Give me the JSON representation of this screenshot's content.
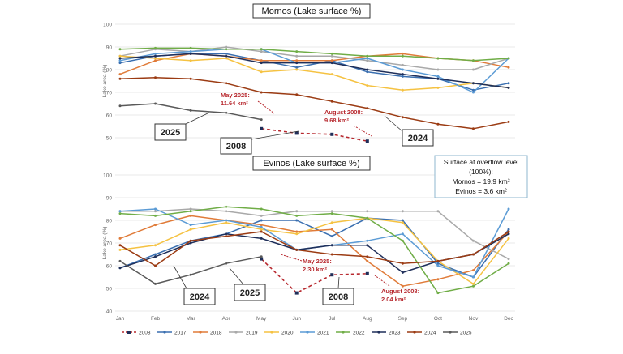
{
  "chart_data": [
    {
      "type": "line",
      "title": "Mornos (Lake surface %)",
      "ylabel": "Lake area (%)",
      "ylim": [
        50,
        100
      ],
      "yticks": [
        50,
        60,
        70,
        80,
        90,
        100
      ],
      "categories": [
        "Jan",
        "Feb",
        "Mar",
        "Apr",
        "May",
        "Jun",
        "Jul",
        "Aug",
        "Sep",
        "Oct",
        "Nov",
        "Dec"
      ],
      "series": [
        {
          "name": "2008",
          "color": "#b7282e",
          "dashed": true,
          "values": [
            null,
            null,
            null,
            null,
            54,
            52,
            51.5,
            48.5,
            null,
            null,
            null,
            null
          ]
        },
        {
          "name": "2017",
          "color": "#3a6fb0",
          "values": [
            83,
            86,
            87,
            87,
            84,
            81,
            84,
            79,
            77,
            76,
            71,
            74
          ]
        },
        {
          "name": "2018",
          "color": "#e07b39",
          "values": [
            78,
            84,
            87,
            86,
            84,
            84,
            84,
            86,
            87,
            85,
            84,
            81
          ]
        },
        {
          "name": "2019",
          "color": "#a9a9a9",
          "values": [
            86,
            89,
            88,
            90,
            88,
            86,
            86,
            84,
            82,
            80,
            80,
            85
          ]
        },
        {
          "name": "2020",
          "color": "#f5c242",
          "values": [
            86,
            85,
            84,
            85,
            79,
            80,
            78,
            73,
            71,
            72,
            74,
            72
          ]
        },
        {
          "name": "2021",
          "color": "#5b9bd5",
          "values": [
            84,
            87,
            88,
            89,
            89,
            83,
            83,
            85,
            80,
            77,
            70,
            85
          ]
        },
        {
          "name": "2022",
          "color": "#70ad47",
          "values": [
            89,
            89.5,
            89.5,
            89,
            89,
            88,
            87,
            86,
            86,
            85,
            84,
            85
          ]
        },
        {
          "name": "2023",
          "color": "#1f2f5a",
          "values": [
            85,
            86,
            87,
            86,
            83,
            83,
            83,
            80,
            78,
            76,
            74,
            72
          ]
        },
        {
          "name": "2024",
          "color": "#9b3b13",
          "values": [
            76,
            76.5,
            76,
            74,
            70,
            69,
            66,
            63,
            59,
            56,
            54,
            57
          ]
        },
        {
          "name": "2025",
          "color": "#595959",
          "values": [
            64,
            65,
            62,
            61,
            58,
            null,
            null,
            null,
            null,
            null,
            null,
            null
          ]
        }
      ],
      "annotations": {
        "may2025": [
          "May 2025:",
          "11.64 km²"
        ],
        "aug2008": [
          "August 2008:",
          "9.68 km²"
        ]
      },
      "labels": {
        "y2025": "2025",
        "y2008": "2008",
        "y2024": "2024"
      }
    },
    {
      "type": "line",
      "title": "Evinos (Lake surface %)",
      "ylabel": "Lake area (%)",
      "ylim": [
        40,
        100
      ],
      "yticks": [
        40,
        50,
        60,
        70,
        80,
        90,
        100
      ],
      "categories": [
        "Jan",
        "Feb",
        "Mar",
        "Apr",
        "May",
        "Jun",
        "Jul",
        "Aug",
        "Sep",
        "Oct",
        "Nov",
        "Dec"
      ],
      "series": [
        {
          "name": "2008",
          "color": "#b7282e",
          "dashed": true,
          "values": [
            null,
            null,
            null,
            null,
            63,
            48,
            56,
            56.5,
            null,
            null,
            null,
            null
          ]
        },
        {
          "name": "2017",
          "color": "#3a6fb0",
          "values": [
            59,
            65,
            71,
            74,
            80,
            80,
            73,
            81,
            80,
            61,
            55,
            76
          ]
        },
        {
          "name": "2018",
          "color": "#e07b39",
          "values": [
            72,
            78,
            82,
            80,
            78,
            75,
            76,
            62,
            51,
            54,
            58,
            75
          ]
        },
        {
          "name": "2019",
          "color": "#a9a9a9",
          "values": [
            84,
            84,
            85,
            84,
            82,
            84,
            84,
            84,
            84,
            84,
            71,
            63
          ]
        },
        {
          "name": "2020",
          "color": "#f5c242",
          "values": [
            67,
            69,
            76,
            79,
            76,
            74,
            79,
            81,
            79,
            62,
            52,
            72
          ]
        },
        {
          "name": "2021",
          "color": "#5b9bd5",
          "values": [
            84,
            85,
            78,
            80,
            77,
            67,
            69,
            71,
            74,
            60,
            55,
            85
          ]
        },
        {
          "name": "2022",
          "color": "#70ad47",
          "values": [
            83,
            82,
            84,
            86,
            85,
            82,
            83,
            81,
            71,
            48,
            51,
            61
          ]
        },
        {
          "name": "2023",
          "color": "#1f2f5a",
          "values": [
            59,
            64,
            70,
            74,
            72,
            67,
            69,
            69,
            57,
            62,
            65,
            74
          ]
        },
        {
          "name": "2024",
          "color": "#9b3b13",
          "values": [
            69,
            60,
            71,
            73,
            75,
            67,
            65,
            64,
            61,
            62,
            65,
            75
          ]
        },
        {
          "name": "2025",
          "color": "#595959",
          "values": [
            62,
            52,
            56,
            61,
            64,
            null,
            null,
            null,
            null,
            null,
            null,
            null
          ]
        }
      ],
      "annotations": {
        "may2025": [
          "May 2025:",
          "2.30 km²"
        ],
        "aug2008": [
          "August 2008:",
          "2.04 km²"
        ]
      },
      "labels": {
        "y2024": "2024",
        "y2025": "2025",
        "y2008": "2008"
      }
    }
  ],
  "info": {
    "lines": [
      "Surface at overflow level",
      "(100%):",
      "Mornos = 19.9 km²",
      "Evinos = 3.6 km²"
    ]
  }
}
